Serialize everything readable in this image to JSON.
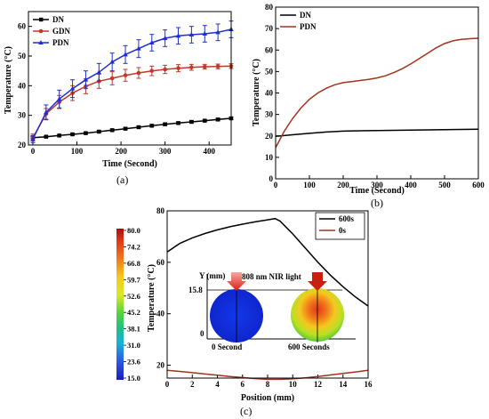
{
  "chart_data": [
    {
      "panel_label": "(a)",
      "type": "line",
      "xlabel": "Time (Second)",
      "ylabel": "Temperature (°C)",
      "xlim": [
        -10,
        450
      ],
      "ylim": [
        20,
        65
      ],
      "xticks": [
        0,
        100,
        200,
        300,
        400
      ],
      "yticks": [
        20,
        30,
        40,
        50,
        60
      ],
      "legend_position": "top-left",
      "series": [
        {
          "name": "DN",
          "color": "#000000",
          "marker": "square",
          "x": [
            0,
            30,
            60,
            90,
            120,
            150,
            180,
            210,
            240,
            270,
            300,
            330,
            360,
            390,
            420,
            450
          ],
          "y": [
            22.5,
            22.8,
            23.2,
            23.6,
            24.0,
            24.5,
            25.0,
            25.5,
            26.0,
            26.5,
            27.0,
            27.4,
            27.8,
            28.2,
            28.6,
            29.0
          ],
          "err": [
            0.3,
            0.3,
            0.3,
            0.3,
            0.3,
            0.4,
            0.4,
            0.4,
            0.4,
            0.4,
            0.4,
            0.4,
            0.4,
            0.4,
            0.4,
            0.4
          ]
        },
        {
          "name": "GDN",
          "color": "#c0392b",
          "marker": "circle",
          "x": [
            0,
            30,
            60,
            90,
            120,
            150,
            180,
            210,
            240,
            270,
            300,
            330,
            360,
            390,
            420,
            450
          ],
          "y": [
            22.5,
            30.5,
            34.5,
            37.5,
            39.8,
            41.5,
            42.5,
            43.5,
            44.3,
            45.0,
            45.5,
            45.9,
            46.2,
            46.4,
            46.5,
            46.6
          ],
          "err": [
            1.2,
            1.8,
            2.2,
            2.5,
            2.5,
            2.4,
            2.2,
            2.0,
            1.8,
            1.6,
            1.4,
            1.2,
            1.0,
            0.8,
            0.8,
            0.8
          ]
        },
        {
          "name": "PDN",
          "color": "#1f2fd0",
          "marker": "triangle",
          "x": [
            0,
            30,
            60,
            90,
            120,
            150,
            180,
            210,
            240,
            270,
            300,
            330,
            360,
            390,
            420,
            450
          ],
          "y": [
            22.0,
            31.0,
            35.5,
            39.0,
            42.0,
            44.5,
            48.0,
            50.5,
            52.5,
            54.5,
            56.0,
            56.8,
            57.2,
            57.5,
            58.0,
            59.0
          ],
          "err": [
            1.2,
            2.5,
            3.0,
            3.0,
            3.0,
            3.0,
            3.0,
            3.0,
            3.0,
            2.8,
            2.8,
            2.8,
            2.8,
            2.8,
            2.8,
            2.8
          ]
        }
      ]
    },
    {
      "panel_label": "(b)",
      "type": "line",
      "xlabel": "Time (Second)",
      "ylabel": "Temperature (°C)",
      "xlim": [
        0,
        600
      ],
      "ylim": [
        0,
        80
      ],
      "xticks": [
        0,
        100,
        200,
        300,
        400,
        500,
        600
      ],
      "yticks": [
        0,
        10,
        20,
        30,
        40,
        50,
        60,
        70,
        80
      ],
      "legend_position": "top-left",
      "series": [
        {
          "name": "DN",
          "color": "#000000",
          "x": [
            0,
            50,
            100,
            150,
            200,
            250,
            300,
            350,
            400,
            450,
            500,
            550,
            600
          ],
          "y": [
            19.8,
            20.5,
            21.2,
            21.8,
            22.2,
            22.4,
            22.5,
            22.6,
            22.7,
            22.8,
            22.9,
            23.0,
            23.1
          ]
        },
        {
          "name": "PDN",
          "color": "#a0331f",
          "x": [
            0,
            25,
            50,
            75,
            100,
            125,
            150,
            175,
            200,
            225,
            250,
            275,
            300,
            325,
            350,
            375,
            400,
            425,
            450,
            475,
            500,
            525,
            550,
            575,
            600
          ],
          "y": [
            14.5,
            22.0,
            28.0,
            33.0,
            37.0,
            40.0,
            42.2,
            43.8,
            44.8,
            45.3,
            45.8,
            46.3,
            47.0,
            48.0,
            49.5,
            51.3,
            53.5,
            56.0,
            58.5,
            61.0,
            63.0,
            64.3,
            65.0,
            65.3,
            65.5
          ]
        }
      ]
    },
    {
      "panel_label": "(c)",
      "type": "line",
      "xlabel": "Position (mm)",
      "ylabel": "Temperature (°C)",
      "xlim": [
        0,
        16
      ],
      "ylim": [
        15,
        80
      ],
      "xticks": [
        0,
        2,
        4,
        6,
        8,
        10,
        12,
        14,
        16
      ],
      "yticks": [
        20,
        40,
        60,
        80
      ],
      "legend_position": "top-right",
      "colorbar": {
        "labels": [
          "80.0",
          "74.2",
          "66.8",
          "59.7",
          "52.6",
          "45.2",
          "38.1",
          "31.0",
          "23.6",
          "15.0"
        ],
        "colors": [
          "#b01010",
          "#e03818",
          "#f07a1c",
          "#f5c81e",
          "#e6ea1f",
          "#5ad23c",
          "#1fbf86",
          "#12a9d8",
          "#2f55e8",
          "#1a1fb8"
        ]
      },
      "inset": {
        "axis_label": "Y (mm)",
        "tick_top": "15.8",
        "tick_bottom": "0",
        "laser_label": "808 nm NIR light",
        "left_caption": "0 Second",
        "right_caption": "600 Seconds"
      },
      "series": [
        {
          "name": "600s",
          "color": "#000000",
          "x": [
            0,
            1,
            2,
            3,
            4,
            5,
            6,
            7,
            8,
            8.6,
            9,
            10,
            11,
            12,
            13,
            14,
            15,
            16
          ],
          "y": [
            64.0,
            67.3,
            69.5,
            71.2,
            72.6,
            73.8,
            74.8,
            75.7,
            76.5,
            77.0,
            76.0,
            71.0,
            65.5,
            60.0,
            55.0,
            50.5,
            46.5,
            43.0
          ]
        },
        {
          "name": "0s",
          "color": "#a0331f",
          "x": [
            0,
            1,
            2,
            3,
            4,
            5,
            6,
            7,
            8,
            9,
            10,
            11,
            12,
            13,
            14,
            15,
            16
          ],
          "y": [
            18.0,
            17.6,
            17.1,
            16.6,
            16.1,
            15.6,
            15.2,
            14.8,
            14.5,
            14.5,
            14.7,
            15.1,
            15.6,
            16.2,
            16.8,
            17.4,
            18.0
          ]
        }
      ]
    }
  ]
}
